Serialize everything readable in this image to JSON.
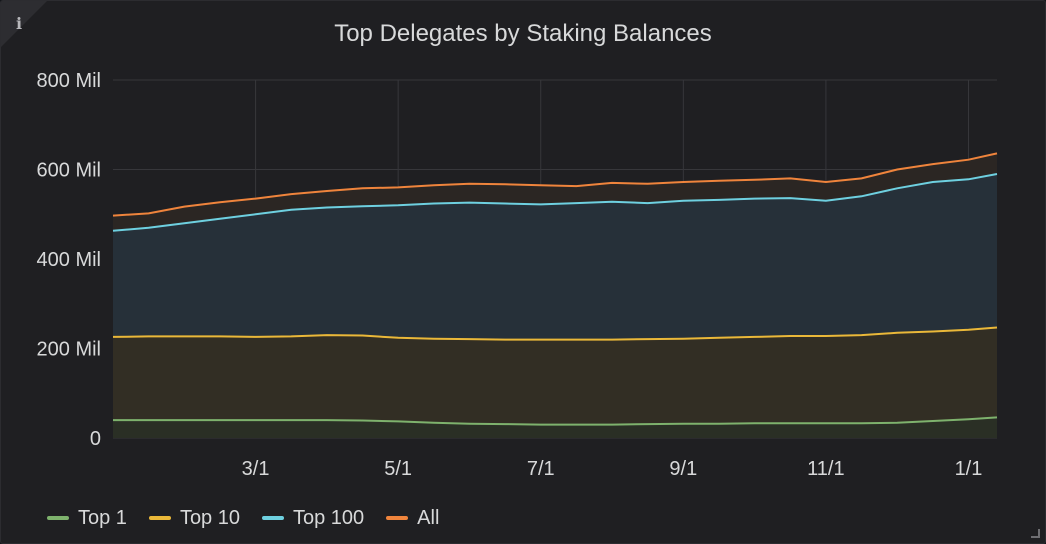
{
  "panel": {
    "info_icon": "i"
  },
  "chart_data": {
    "type": "area",
    "title": "Top Delegates by Staking Balances",
    "xlabel": "",
    "ylabel": "",
    "x_range_months": [
      1.0,
      13.4
    ],
    "ylim": [
      0,
      800
    ],
    "y_ticks": [
      {
        "value": 0,
        "label": "0"
      },
      {
        "value": 200,
        "label": "200 Mil"
      },
      {
        "value": 400,
        "label": "400 Mil"
      },
      {
        "value": 600,
        "label": "600 Mil"
      },
      {
        "value": 800,
        "label": "800 Mil"
      }
    ],
    "x_ticks": [
      {
        "value": 3,
        "label": "3/1"
      },
      {
        "value": 5,
        "label": "5/1"
      },
      {
        "value": 7,
        "label": "7/1"
      },
      {
        "value": 9,
        "label": "9/1"
      },
      {
        "value": 11,
        "label": "11/1"
      },
      {
        "value": 13,
        "label": "1/1"
      }
    ],
    "grid": true,
    "legend_position": "bottom-left",
    "x": [
      1.0,
      1.5,
      2.0,
      2.5,
      3.0,
      3.5,
      4.0,
      4.5,
      5.0,
      5.5,
      6.0,
      6.5,
      7.0,
      7.5,
      8.0,
      8.5,
      9.0,
      9.5,
      10.0,
      10.5,
      11.0,
      11.5,
      12.0,
      12.5,
      13.0,
      13.4
    ],
    "series": [
      {
        "name": "All",
        "color": "#ef843c",
        "fill": "#2b2623",
        "values": [
          497,
          502,
          517,
          527,
          535,
          545,
          552,
          558,
          560,
          565,
          568,
          567,
          565,
          563,
          570,
          568,
          572,
          575,
          577,
          580,
          572,
          580,
          600,
          612,
          622,
          636
        ]
      },
      {
        "name": "Top 100",
        "color": "#6ed0e0",
        "fill": "#263039",
        "values": [
          463,
          470,
          480,
          490,
          500,
          510,
          515,
          518,
          520,
          524,
          526,
          524,
          522,
          525,
          528,
          525,
          530,
          532,
          535,
          536,
          530,
          540,
          558,
          572,
          578,
          590
        ]
      },
      {
        "name": "Top 10",
        "color": "#eab839",
        "fill": "#322e24",
        "values": [
          226,
          227,
          227,
          227,
          226,
          227,
          230,
          229,
          224,
          222,
          221,
          220,
          220,
          220,
          220,
          221,
          222,
          224,
          226,
          228,
          228,
          230,
          235,
          238,
          242,
          247
        ]
      },
      {
        "name": "Top 1",
        "color": "#7eb26d",
        "fill": "#2a2f25",
        "values": [
          40,
          40,
          40,
          40,
          40,
          40,
          40,
          39,
          37,
          34,
          32,
          31,
          30,
          30,
          30,
          31,
          32,
          32,
          33,
          33,
          33,
          33,
          34,
          38,
          42,
          46
        ]
      }
    ]
  },
  "legend": [
    {
      "label": "Top 1",
      "color": "#7eb26d"
    },
    {
      "label": "Top 10",
      "color": "#eab839"
    },
    {
      "label": "Top 100",
      "color": "#6ed0e0"
    },
    {
      "label": "All",
      "color": "#ef843c"
    }
  ]
}
